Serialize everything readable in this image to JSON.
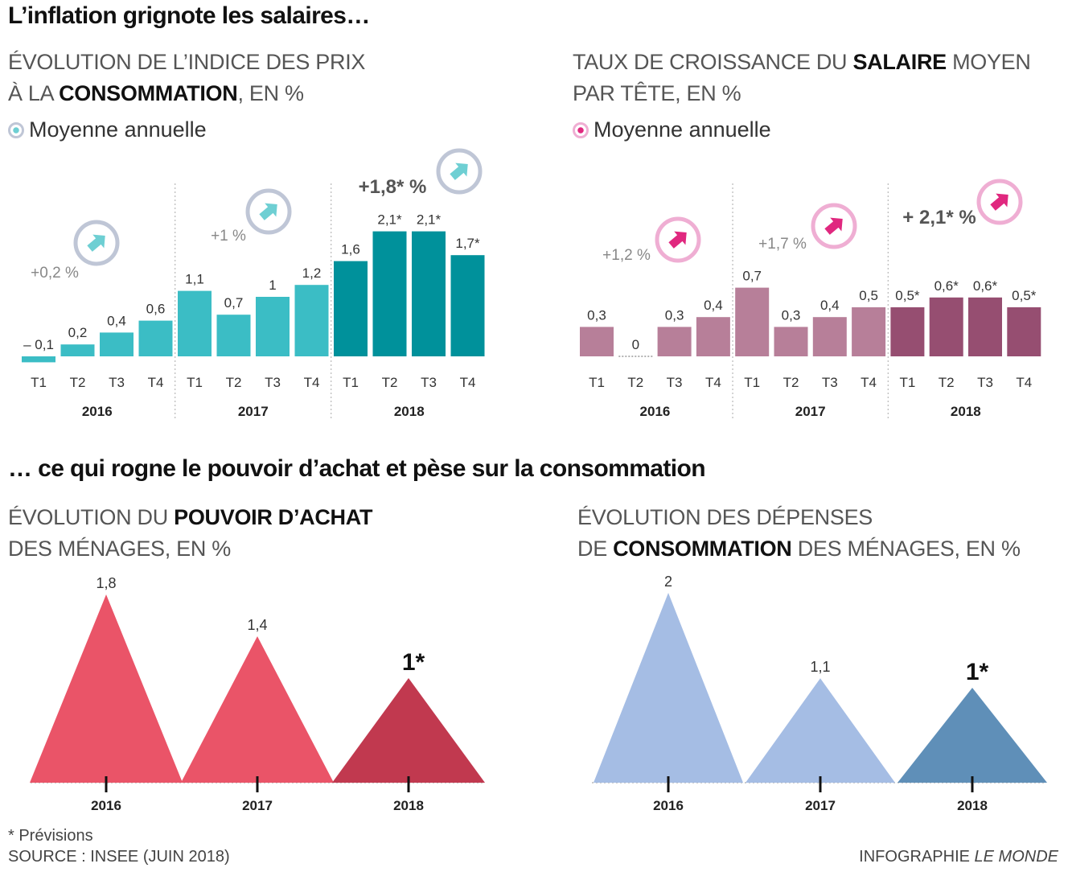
{
  "headings": {
    "top": "L’inflation grignote les salaires…",
    "bottom": "… ce qui rogne le pouvoir d’achat et pèse sur la consommation"
  },
  "legend_label": "Moyenne annuelle",
  "colors": {
    "cpi_light": "#3bbdc5",
    "cpi_dark": "#00919b",
    "cpi_circle": "#bfc6d6",
    "cpi_arrow": "#6ecfd3",
    "wage_light": "#b77f99",
    "wage_dark": "#964e71",
    "wage_circle": "#efaed3",
    "wage_arrow": "#e0287f",
    "pa_light": "#ea5468",
    "pa_dark": "#c1394f",
    "conso_light": "#a5bde4",
    "conso_dark": "#5f8fb8"
  },
  "chart_data": [
    {
      "type": "bar",
      "title_parts": [
        "ÉVOLUTION DE L’INDICE DES PRIX",
        "À LA ",
        "CONSOMMATION",
        ", EN %"
      ],
      "categories": [
        "T1",
        "T2",
        "T3",
        "T4",
        "T1",
        "T2",
        "T3",
        "T4",
        "T1",
        "T2",
        "T3",
        "T4"
      ],
      "groups": [
        "2016",
        "2017",
        "2018"
      ],
      "values": [
        -0.1,
        0.2,
        0.4,
        0.6,
        1.1,
        0.7,
        1,
        1.2,
        1.6,
        2.1,
        2.1,
        1.7
      ],
      "value_labels": [
        "– 0,1",
        "0,2",
        "0,4",
        "0,6",
        "1,1",
        "0,7",
        "1",
        "1,2",
        "1,6",
        "2,1*",
        "2,1*",
        "1,7*"
      ],
      "annual_averages": [
        "+0,2 %",
        "+1 %",
        "+1,8* %"
      ]
    },
    {
      "type": "bar",
      "title_parts": [
        "TAUX DE CROISSANCE DU ",
        "SALAIRE",
        " MOYEN",
        "PAR TÊTE, EN %"
      ],
      "categories": [
        "T1",
        "T2",
        "T3",
        "T4",
        "T1",
        "T2",
        "T3",
        "T4",
        "T1",
        "T2",
        "T3",
        "T4"
      ],
      "groups": [
        "2016",
        "2017",
        "2018"
      ],
      "values": [
        0.3,
        0,
        0.3,
        0.4,
        0.7,
        0.3,
        0.4,
        0.5,
        0.5,
        0.6,
        0.6,
        0.5
      ],
      "value_labels": [
        "0,3",
        "0",
        "0,3",
        "0,4",
        "0,7",
        "0,3",
        "0,4",
        "0,5",
        "0,5*",
        "0,6*",
        "0,6*",
        "0,5*"
      ],
      "annual_averages": [
        "+1,2 %",
        "+1,7 %",
        "+ 2,1* %"
      ]
    },
    {
      "type": "area",
      "title_parts": [
        "ÉVOLUTION DU ",
        "POUVOIR D’ACHAT",
        "DES MÉNAGES, EN %"
      ],
      "categories": [
        "2016",
        "2017",
        "2018"
      ],
      "values": [
        1.8,
        1.4,
        1
      ],
      "value_labels": [
        "1,8",
        "1,4",
        "1*"
      ]
    },
    {
      "type": "area",
      "title_parts": [
        "ÉVOLUTION DES DÉPENSES",
        "DE ",
        "CONSOMMATION",
        " DES MÉNAGES, EN %"
      ],
      "categories": [
        "2016",
        "2017",
        "2018"
      ],
      "values": [
        2,
        1.1,
        1
      ],
      "value_labels": [
        "2",
        "1,1",
        "1*"
      ]
    }
  ],
  "footer": {
    "note": "* Prévisions",
    "source": "SOURCE : INSEE (JUIN 2018)",
    "credit_prefix": "INFOGRAPHIE ",
    "credit_brand": "LE MONDE"
  }
}
